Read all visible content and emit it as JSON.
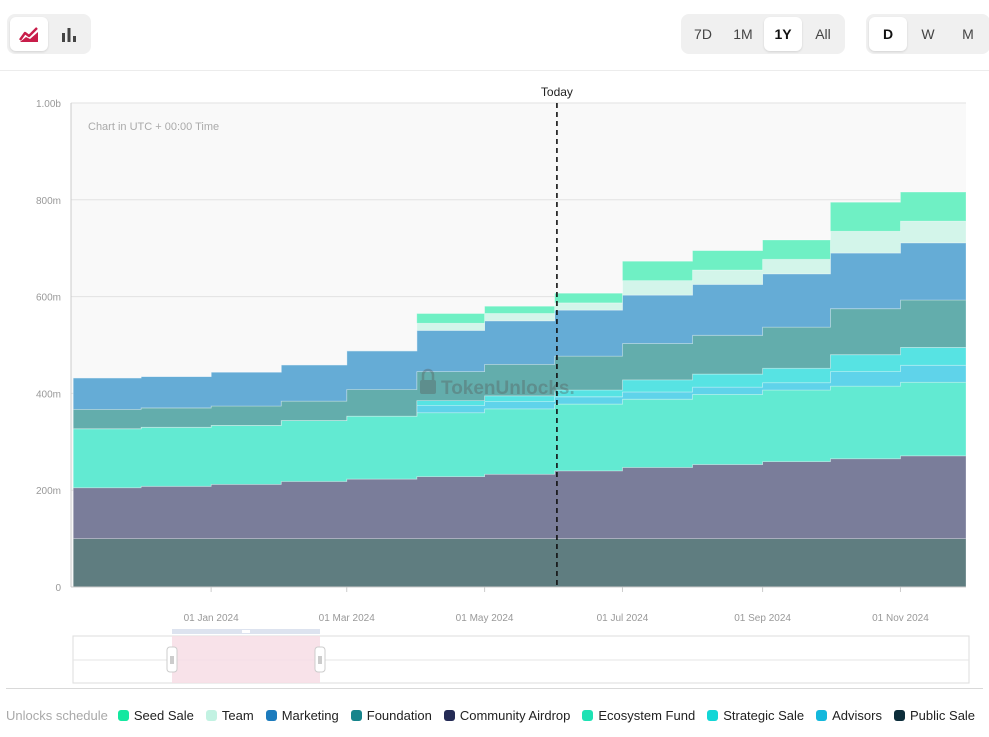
{
  "toolbar": {
    "chart_types": [
      {
        "icon": "area-chart-icon",
        "active": true
      },
      {
        "icon": "bar-chart-icon",
        "active": false
      }
    ],
    "ranges": [
      {
        "label": "7D",
        "active": false
      },
      {
        "label": "1M",
        "active": false
      },
      {
        "label": "1Y",
        "active": true
      },
      {
        "label": "All",
        "active": false
      }
    ],
    "granularity": [
      {
        "label": "D",
        "active": true
      },
      {
        "label": "W",
        "active": false
      },
      {
        "label": "M",
        "active": false
      }
    ]
  },
  "chart_data": {
    "type": "area",
    "stacked": true,
    "step": true,
    "subtitle": "Chart in UTC + 00:00 Time",
    "watermark": "TokenUnlocks.",
    "today_label": "Today",
    "today_x": "2024-06-02",
    "y_ticks": [
      {
        "v": 0,
        "label": "0"
      },
      {
        "v": 200,
        "label": "200m"
      },
      {
        "v": 400,
        "label": "400m"
      },
      {
        "v": 600,
        "label": "600m"
      },
      {
        "v": 800,
        "label": "800m"
      },
      {
        "v": 1000,
        "label": "1.00b"
      }
    ],
    "ylim": [
      0,
      1000
    ],
    "x_range": [
      "2023-10-31",
      "2024-11-30"
    ],
    "x_ticks": [
      {
        "date": "2024-01-01",
        "label": "01 Jan 2024"
      },
      {
        "date": "2024-03-01",
        "label": "01 Mar 2024"
      },
      {
        "date": "2024-05-01",
        "label": "01 May 2024"
      },
      {
        "date": "2024-07-01",
        "label": "01 Jul 2024"
      },
      {
        "date": "2024-09-01",
        "label": "01 Sep 2024"
      },
      {
        "date": "2024-11-01",
        "label": "01 Nov 2024"
      }
    ],
    "x": [
      "2023-11-01",
      "2023-12-01",
      "2024-01-01",
      "2024-02-01",
      "2024-03-01",
      "2024-04-01",
      "2024-05-01",
      "2024-06-01",
      "2024-07-01",
      "2024-08-01",
      "2024-09-01",
      "2024-10-01",
      "2024-11-01"
    ],
    "series": [
      {
        "name": "Public Sale",
        "color": "#5f7d80",
        "values": [
          100,
          100,
          100,
          100,
          100,
          100,
          100,
          100,
          100,
          100,
          100,
          100,
          100
        ]
      },
      {
        "name": "Community Airdrop",
        "color": "#7a7d9a",
        "values": [
          105,
          108,
          112,
          118,
          123,
          128,
          133,
          140,
          147,
          153,
          159,
          165,
          171
        ]
      },
      {
        "name": "Ecosystem Fund",
        "color": "#62ead2",
        "values": [
          122,
          122,
          122,
          126,
          130,
          132,
          135,
          138,
          141,
          145,
          148,
          150,
          152
        ]
      },
      {
        "name": "Advisors",
        "color": "#5fd3ea",
        "values": [
          0,
          0,
          0,
          0,
          0,
          15,
          15,
          15,
          15,
          15,
          15,
          30,
          35
        ]
      },
      {
        "name": "Strategic Sale",
        "color": "#57e3e3",
        "values": [
          0,
          0,
          0,
          0,
          0,
          10,
          12,
          14,
          25,
          27,
          30,
          35,
          37
        ]
      },
      {
        "name": "Foundation",
        "color": "#63adac",
        "values": [
          40,
          40,
          40,
          40,
          55,
          60,
          65,
          70,
          75,
          80,
          85,
          95,
          98
        ]
      },
      {
        "name": "Marketing",
        "color": "#65acd6",
        "values": [
          65,
          65,
          70,
          75,
          80,
          85,
          90,
          95,
          100,
          105,
          110,
          115,
          118
        ]
      },
      {
        "name": "Team",
        "color": "#d3f5ea",
        "values": [
          0,
          0,
          0,
          0,
          0,
          15,
          15,
          15,
          30,
          30,
          30,
          45,
          45
        ]
      },
      {
        "name": "Seed Sale",
        "color": "#6ff0c4",
        "values": [
          0,
          0,
          0,
          0,
          0,
          20,
          15,
          20,
          40,
          40,
          40,
          60,
          60
        ]
      }
    ],
    "legend_title": "Unlocks schedule",
    "legend": [
      {
        "name": "Seed Sale",
        "color": "#14e8a0"
      },
      {
        "name": "Team",
        "color": "#c2f2e2"
      },
      {
        "name": "Marketing",
        "color": "#1c7bbd"
      },
      {
        "name": "Foundation",
        "color": "#16848b"
      },
      {
        "name": "Community Airdrop",
        "color": "#242b55"
      },
      {
        "name": "Ecosystem Fund",
        "color": "#1ee2b4"
      },
      {
        "name": "Strategic Sale",
        "color": "#12d6d6"
      },
      {
        "name": "Advisors",
        "color": "#14b8dc"
      },
      {
        "name": "Public Sale",
        "color": "#0c2d3a"
      }
    ],
    "zoom_window": [
      "2023-10-31",
      "2024-11-30"
    ]
  }
}
